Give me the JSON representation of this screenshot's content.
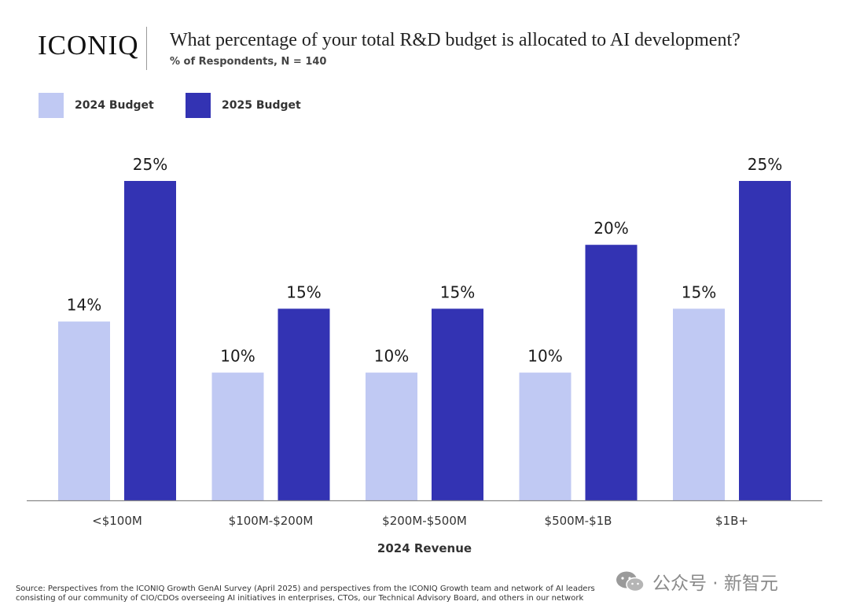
{
  "header": {
    "logo": "ICONIQ",
    "title": "What percentage of your total R&D budget is allocated to AI development?",
    "subtitle": "% of Respondents, N = 140"
  },
  "legend": [
    {
      "label": "2024 Budget",
      "color": "#c0c9f3"
    },
    {
      "label": "2025 Budget",
      "color": "#3333b3"
    }
  ],
  "chart_data": {
    "type": "bar",
    "title": "What percentage of your total R&D budget is allocated to AI development?",
    "xlabel": "2024 Revenue",
    "ylabel": "% of Respondents",
    "categories": [
      "<$100M",
      "$100M-$200M",
      "$200M-$500M",
      "$500M-$1B",
      "$1B+"
    ],
    "series": [
      {
        "name": "2024 Budget",
        "values": [
          14,
          10,
          10,
          10,
          15
        ],
        "labels": [
          "14%",
          "10%",
          "10%",
          "10%",
          "15%"
        ],
        "color": "#c0c9f3"
      },
      {
        "name": "2025 Budget",
        "values": [
          25,
          15,
          15,
          20,
          25
        ],
        "labels": [
          "25%",
          "15%",
          "15%",
          "20%",
          "25%"
        ],
        "color": "#3333b3"
      }
    ],
    "ylim": [
      0,
      26
    ],
    "grid": false,
    "legend_position": "top-left"
  },
  "footer": {
    "source_line1": "Source: Perspectives from the ICONIQ Growth GenAI Survey (April 2025) and perspectives from the ICONIQ Growth team and network of AI leaders",
    "source_line2": "consisting of our community of CIO/CDOs overseeing AI initiatives in enterprises, CTOs, our Technical Advisory Board, and others in our network",
    "watermark": "公众号 · 新智元",
    "watermark_icon": "wechat-icon"
  }
}
